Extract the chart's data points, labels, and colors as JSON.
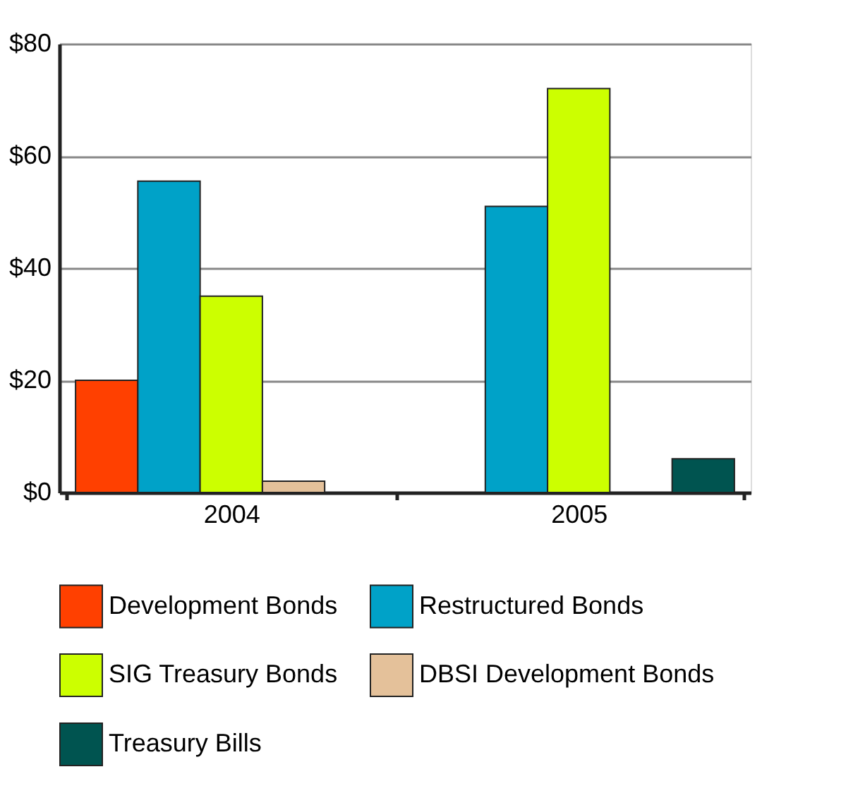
{
  "chart_data": {
    "type": "bar",
    "categories": [
      "2004",
      "2005"
    ],
    "series": [
      {
        "name": "Development Bonds",
        "color": "#ff4000",
        "values": [
          20,
          null
        ]
      },
      {
        "name": "Restructured Bonds",
        "color": "#00a2c8",
        "values": [
          55.5,
          51
        ]
      },
      {
        "name": "SIG Treasury Bonds",
        "color": "#ccff00",
        "values": [
          35,
          72
        ]
      },
      {
        "name": "DBSI Development Bonds",
        "color": "#e4c19a",
        "values": [
          2,
          null
        ]
      },
      {
        "name": "Treasury Bills",
        "color": "#005450",
        "values": [
          null,
          6
        ]
      }
    ],
    "ylim": [
      0,
      80
    ],
    "yticks": [
      {
        "value": 0,
        "label": "$0"
      },
      {
        "value": 20,
        "label": "$20"
      },
      {
        "value": 40,
        "label": "$40"
      },
      {
        "value": 60,
        "label": "$60"
      },
      {
        "value": 80,
        "label": "$80"
      }
    ],
    "grid": "y",
    "legend": "bottom"
  }
}
